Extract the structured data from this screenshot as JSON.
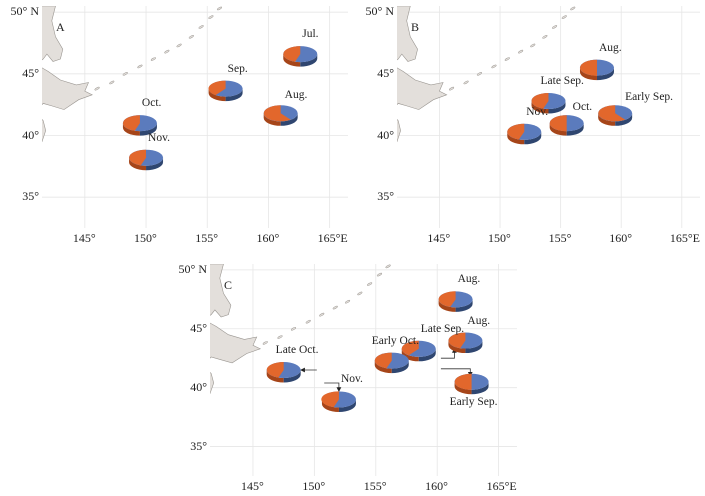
{
  "panels": [
    {
      "id": "A",
      "label": "A",
      "lat_ticks": [
        "50° N",
        "45°",
        "40°",
        "35°"
      ],
      "lon_ticks": [
        "145°",
        "150°",
        "155°",
        "160°",
        "165°E"
      ],
      "pies": [
        {
          "label": "Jul.",
          "lon": 162.6,
          "lat": 46.6,
          "orange": 0.45
        },
        {
          "label": "Sep.",
          "lon": 156.5,
          "lat": 43.8,
          "orange": 0.4
        },
        {
          "label": "Aug.",
          "lon": 161.0,
          "lat": 41.8,
          "orange": 0.6
        },
        {
          "label": "Oct.",
          "lon": 149.5,
          "lat": 41.0,
          "orange": 0.45
        },
        {
          "label": "Nov.",
          "lon": 150.0,
          "lat": 38.2,
          "orange": 0.45
        }
      ]
    },
    {
      "id": "B",
      "label": "B",
      "lat_ticks": [
        "50° N",
        "45°",
        "40°",
        "35°"
      ],
      "lon_ticks": [
        "145°",
        "150°",
        "155°",
        "160°",
        "165°E"
      ],
      "pies": [
        {
          "label": "Aug.",
          "lon": 158.0,
          "lat": 45.5,
          "orange": 0.5
        },
        {
          "label": "Late Sep.",
          "lon": 154.0,
          "lat": 42.8,
          "orange": 0.45
        },
        {
          "label": "Early Sep.",
          "lon": 159.5,
          "lat": 41.8,
          "orange": 0.6
        },
        {
          "label": "Oct.",
          "lon": 155.5,
          "lat": 41.0,
          "orange": 0.5
        },
        {
          "label": "Nov.",
          "lon": 152.0,
          "lat": 40.3,
          "orange": 0.45
        }
      ]
    },
    {
      "id": "C",
      "label": "C",
      "lat_ticks": [
        "50° N",
        "45°",
        "40°",
        "35°"
      ],
      "lon_ticks": [
        "145°",
        "150°",
        "155°",
        "160°",
        "165°E"
      ],
      "pies": [
        {
          "label": "Aug.",
          "lon": 161.5,
          "lat": 47.5,
          "orange": 0.45
        },
        {
          "label": "Aug.",
          "lon": 162.3,
          "lat": 44.0,
          "orange": 0.45
        },
        {
          "label": "Late Sep.",
          "lon": 158.5,
          "lat": 43.3,
          "orange": 0.4
        },
        {
          "label": "Early Oct.",
          "lon": 156.3,
          "lat": 42.3,
          "orange": 0.45
        },
        {
          "label": "Late Oct.",
          "lon": 147.5,
          "lat": 41.5,
          "orange": 0.45
        },
        {
          "label": "Nov.",
          "lon": 152.0,
          "lat": 39.0,
          "orange": 0.45
        },
        {
          "label": "Early Sep.",
          "lon": 162.8,
          "lat": 40.5,
          "orange": 0.5
        }
      ]
    }
  ],
  "colors": {
    "orange": "#e2672c",
    "orange_side": "#a64519",
    "blue": "#5b7bbd",
    "blue_side": "#2f4670",
    "land": "#e3dfdb",
    "land_stroke": "#9a9691"
  }
}
